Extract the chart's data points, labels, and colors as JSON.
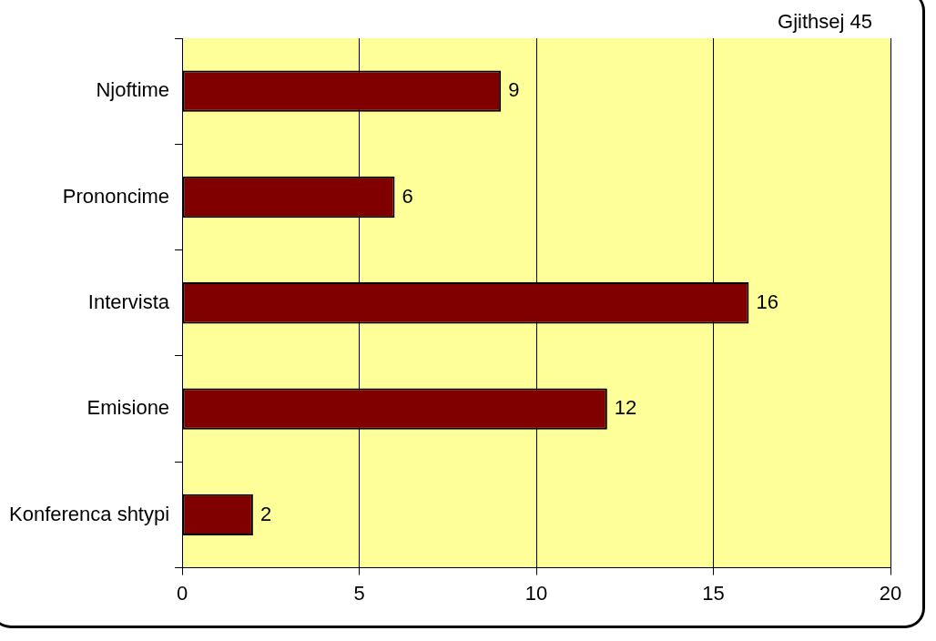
{
  "chart_data": {
    "type": "bar",
    "orientation": "horizontal",
    "categories": [
      "Njoftime",
      "Prononcime",
      "Intervista",
      "Emisione",
      "Konferenca shtypi"
    ],
    "values": [
      9,
      6,
      16,
      12,
      2
    ],
    "color": "#800000",
    "xlim": [
      0,
      20
    ],
    "xticks": [
      0,
      5,
      10,
      15,
      20
    ],
    "grid": "x",
    "legend": false,
    "data_labels": true,
    "annotations": [
      "Gjithsej 45"
    ]
  }
}
